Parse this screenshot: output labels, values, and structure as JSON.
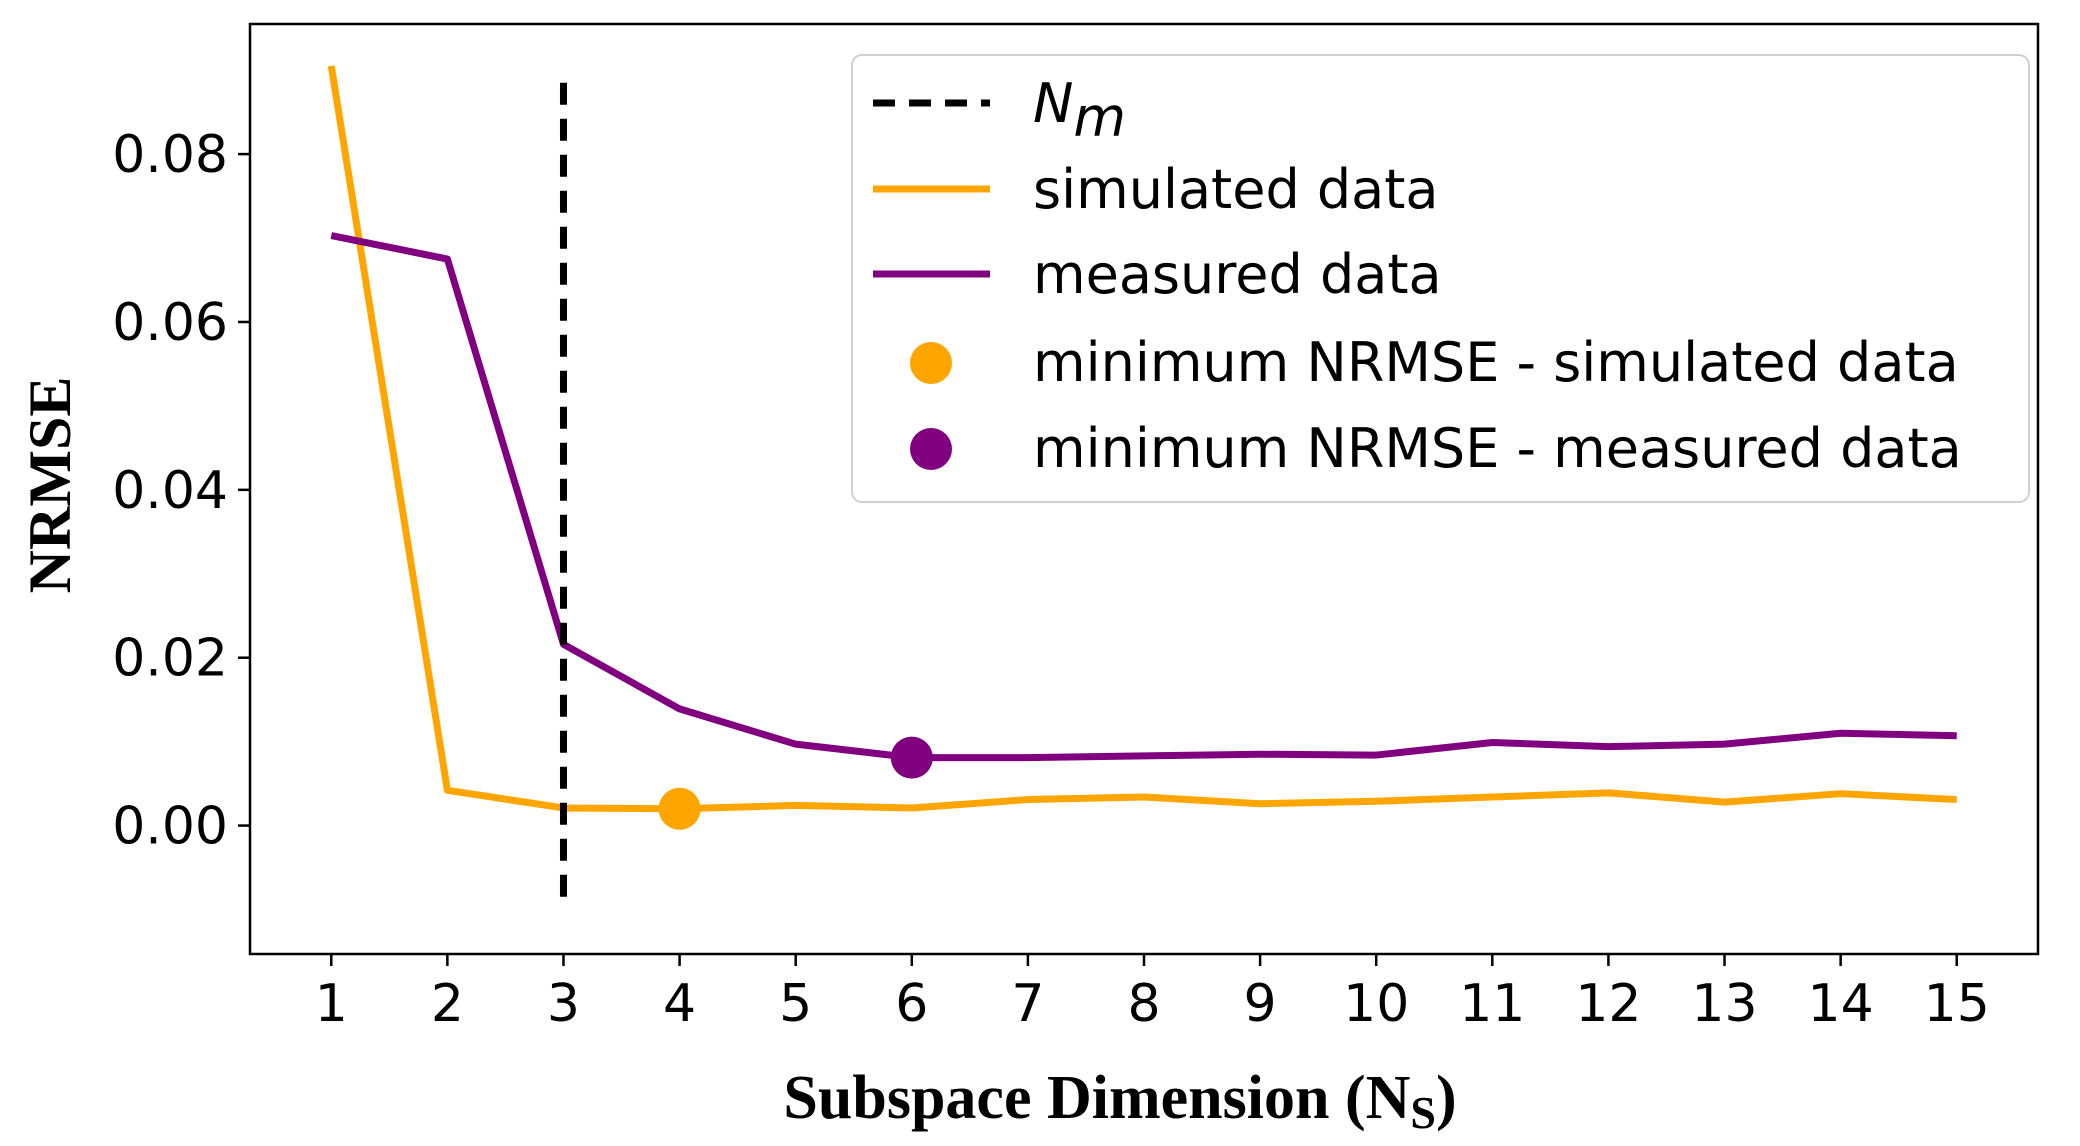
{
  "chart_data": {
    "type": "line",
    "xlabel": "Subspace Dimension (N",
    "xlabel_sub": "S",
    "xlabel_close": ")",
    "ylabel": "NRMSE",
    "x": [
      1,
      2,
      3,
      4,
      5,
      6,
      7,
      8,
      9,
      10,
      11,
      12,
      13,
      14,
      15
    ],
    "xlim": [
      0.3,
      15.7
    ],
    "ylim": [
      -0.0153,
      0.0955
    ],
    "yticks": [
      0.0,
      0.02,
      0.04,
      0.06,
      0.08
    ],
    "ytick_labels": [
      "0.00",
      "0.02",
      "0.04",
      "0.06",
      "0.08"
    ],
    "grid": false,
    "series": [
      {
        "name": "simulated data",
        "color": "#FFA500",
        "values": [
          0.0905,
          0.0042,
          0.0021,
          0.002,
          0.0024,
          0.0021,
          0.0031,
          0.0034,
          0.0026,
          0.0029,
          0.0034,
          0.0039,
          0.0028,
          0.0038,
          0.0031
        ]
      },
      {
        "name": "measured data",
        "color": "#800080",
        "values": [
          0.0703,
          0.0675,
          0.0216,
          0.0139,
          0.0097,
          0.0081,
          0.0081,
          0.0083,
          0.0085,
          0.0084,
          0.0099,
          0.0094,
          0.0097,
          0.011,
          0.0107
        ]
      }
    ],
    "vline": {
      "name_main": "N",
      "name_sub": "m",
      "x": 3,
      "y_range": [
        -0.01,
        0.0885
      ],
      "color": "#000000",
      "style": "dashed"
    },
    "markers": [
      {
        "name": "minimum NRMSE - simulated data",
        "x": 4,
        "y": 0.002,
        "color": "#FFA500"
      },
      {
        "name": "minimum NRMSE - measured data",
        "x": 6,
        "y": 0.0081,
        "color": "#800080"
      }
    ],
    "legend_placement": "upper-right"
  }
}
